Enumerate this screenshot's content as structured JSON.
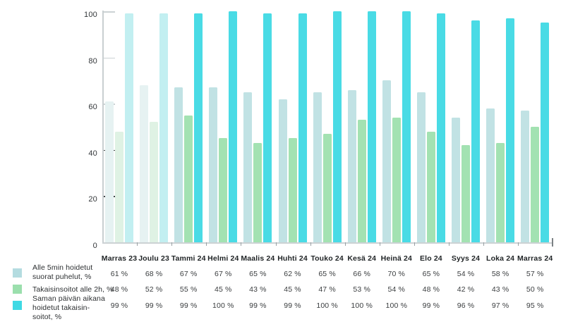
{
  "chart_data": {
    "type": "bar",
    "title": "",
    "categories": [
      "Marras 23",
      "Joulu 23",
      "Tammi 24",
      "Helmi 24",
      "Maalis 24",
      "Huhti 24",
      "Touko 24",
      "Kesä 24",
      "Heinä 24",
      "Elo 24",
      "Syys 24",
      "Loka 24",
      "Marras 24"
    ],
    "faded_categories": [
      "Marras 23",
      "Joulu 23"
    ],
    "series": [
      {
        "name": "Alle 5min hoidetut suorat puhelut, %",
        "color": "#c1e2e4",
        "faded_color": "#e6f2f2",
        "values": [
          61,
          68,
          67,
          67,
          65,
          62,
          65,
          66,
          70,
          65,
          54,
          58,
          57
        ]
      },
      {
        "name": "Takaisinsoitot alle 2h, %",
        "color": "#a3e2b2",
        "faded_color": "#dff2e4",
        "values": [
          48,
          52,
          55,
          45,
          43,
          45,
          47,
          53,
          54,
          48,
          42,
          43,
          50
        ]
      },
      {
        "name": "Saman päivän aikana hoidetut takaisinsoitot, %",
        "color": "#49dbe5",
        "faded_color": "#c2eff1",
        "values": [
          99,
          99,
          99,
          100,
          99,
          99,
          100,
          100,
          100,
          99,
          96,
          97,
          95
        ]
      }
    ],
    "xlabel": "",
    "ylabel": "",
    "ylim": [
      0,
      101
    ],
    "yticks": [
      0,
      20,
      40,
      60,
      80,
      100
    ],
    "grid": false,
    "legend_position": "bottom-left"
  },
  "y_axis": {
    "tick_labels": [
      "0",
      "20",
      "40",
      "60",
      "80",
      "100"
    ]
  },
  "table": {
    "column_headers": [
      "Marras 23",
      "Joulu 23",
      "Tammi 24",
      "Helmi 24",
      "Maalis 24",
      "Huhti 24",
      "Touko 24",
      "Kesä 24",
      "Heinä 24",
      "Elo 24",
      "Syys 24",
      "Loka 24",
      "Marras 24"
    ],
    "rows": [
      {
        "label_lines": [
          "Alle 5min hoidetut",
          "suorat puhelut, %"
        ],
        "swatch_color": "#b4dce0",
        "values": [
          "61 %",
          "68 %",
          "67 %",
          "67 %",
          "65 %",
          "62 %",
          "65 %",
          "66 %",
          "70 %",
          "65 %",
          "54 %",
          "58 %",
          "57 %"
        ]
      },
      {
        "label_lines": [
          "Takaisinsoitot alle 2h, %"
        ],
        "swatch_color": "#9bdfad",
        "values": [
          "48 %",
          "52 %",
          "55 %",
          "45 %",
          "43 %",
          "45 %",
          "47 %",
          "53 %",
          "54 %",
          "48 %",
          "42 %",
          "43 %",
          "50 %"
        ]
      },
      {
        "label_lines": [
          "Saman päivän aikana",
          "hoidetut takaisin-",
          "soitot, %"
        ],
        "swatch_color": "#3fd9e4",
        "values": [
          "99 %",
          "99 %",
          "99 %",
          "100 %",
          "99 %",
          "99 %",
          "100 %",
          "100 %",
          "100 %",
          "99 %",
          "96 %",
          "97 %",
          "95 %"
        ]
      }
    ]
  }
}
